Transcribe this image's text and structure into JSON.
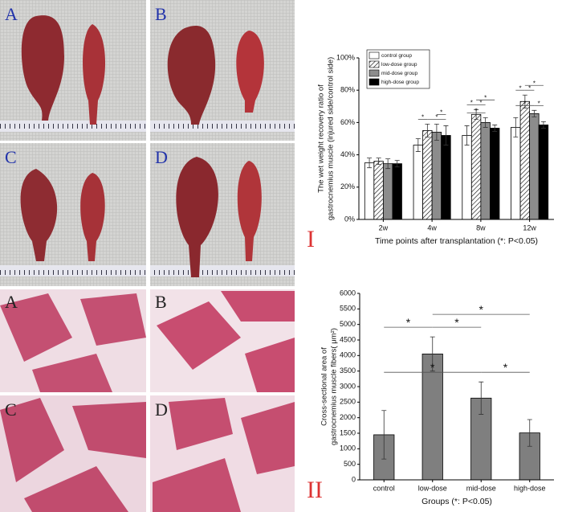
{
  "chart_data": [
    {
      "type": "bar",
      "ylabel": [
        "The wet weight recovery ratio of",
        "gastrocnemius muscle (injured side/control side)"
      ],
      "xlabel": "Time points after transplantation (*: P<0.05)",
      "categories": [
        "2w",
        "4w",
        "8w",
        "12w"
      ],
      "series": [
        {
          "name": "control group",
          "color": "#ffffff",
          "values": [
            35,
            46,
            52,
            57
          ],
          "errors": [
            3,
            4,
            6,
            6
          ]
        },
        {
          "name": "low-dose group",
          "color": "#ffffff",
          "pattern": "hatch",
          "values": [
            36,
            55,
            65,
            73
          ],
          "errors": [
            2,
            4,
            3,
            4
          ]
        },
        {
          "name": "mid-dose group",
          "color": "#8c8c8c",
          "values": [
            34.5,
            54,
            60,
            65.5
          ],
          "errors": [
            3,
            5,
            3,
            2
          ]
        },
        {
          "name": "high-dose group",
          "color": "#000000",
          "values": [
            34.5,
            52,
            56.5,
            58.5
          ],
          "errors": [
            2,
            6,
            2,
            2
          ]
        }
      ],
      "ylim": [
        0,
        100
      ],
      "yticks": [
        {
          "value": 0,
          "label": "0%"
        },
        {
          "value": 20,
          "label": "20%"
        },
        {
          "value": 40,
          "label": "40%"
        },
        {
          "value": 60,
          "label": "60%"
        },
        {
          "value": 80,
          "label": "80%"
        },
        {
          "value": 100,
          "label": "100%"
        }
      ],
      "legend": "top-left",
      "annotations": [
        {
          "text": "*",
          "category": "4w",
          "pair": [
            "control group",
            "low-dose group"
          ]
        },
        {
          "text": "*",
          "category": "4w",
          "pair": [
            "low-dose group",
            "high-dose group"
          ]
        },
        {
          "text": "*",
          "category": "4w",
          "pair": [
            "mid-dose group",
            "high-dose group"
          ]
        },
        {
          "text": "*",
          "category": "8w",
          "pair": [
            "control group",
            "low-dose group"
          ]
        },
        {
          "text": "*",
          "category": "8w",
          "pair": [
            "control group",
            "mid-dose group"
          ]
        },
        {
          "text": "*",
          "category": "8w",
          "pair": [
            "low-dose group",
            "mid-dose group"
          ]
        },
        {
          "text": "*",
          "category": "8w",
          "pair": [
            "low-dose group",
            "high-dose group"
          ]
        },
        {
          "text": "*",
          "category": "12w",
          "pair": [
            "control group",
            "low-dose group"
          ]
        },
        {
          "text": "*",
          "category": "12w",
          "pair": [
            "control group",
            "mid-dose group"
          ]
        },
        {
          "text": "*",
          "category": "12w",
          "pair": [
            "low-dose group",
            "mid-dose group"
          ]
        },
        {
          "text": "*",
          "category": "12w",
          "pair": [
            "low-dose group",
            "high-dose group"
          ]
        },
        {
          "text": "*",
          "category": "12w",
          "pair": [
            "mid-dose group",
            "high-dose group"
          ]
        }
      ]
    },
    {
      "type": "bar",
      "ylabel": [
        "Cross-sectional area of",
        "gastrocnemius muscle fibers( μm²)"
      ],
      "xlabel": "Groups (*: P<0.05)",
      "categories": [
        "control",
        "low-dose",
        "mid-dose",
        "high-dose"
      ],
      "values": [
        1450,
        4050,
        2630,
        1510
      ],
      "errors": [
        780,
        550,
        520,
        430
      ],
      "color": "#7f7f7f",
      "ylim": [
        0,
        6000
      ],
      "yticks": [
        0,
        500,
        1000,
        1500,
        2000,
        2500,
        3000,
        3500,
        4000,
        4500,
        5000,
        5500,
        6000
      ],
      "annotations": [
        {
          "text": "*",
          "pair": [
            "control",
            "low-dose"
          ]
        },
        {
          "text": "*",
          "pair": [
            "control",
            "mid-dose"
          ]
        },
        {
          "text": "*",
          "pair": [
            "low-dose",
            "mid-dose"
          ]
        },
        {
          "text": "*",
          "pair": [
            "low-dose",
            "high-dose"
          ]
        },
        {
          "text": "*",
          "pair": [
            "mid-dose",
            "high-dose"
          ]
        }
      ]
    }
  ],
  "photo_labels": [
    "A",
    "B",
    "C",
    "D"
  ],
  "histology_labels": [
    "A",
    "B",
    "C",
    "D"
  ],
  "figure_labels": [
    "I",
    "II"
  ]
}
